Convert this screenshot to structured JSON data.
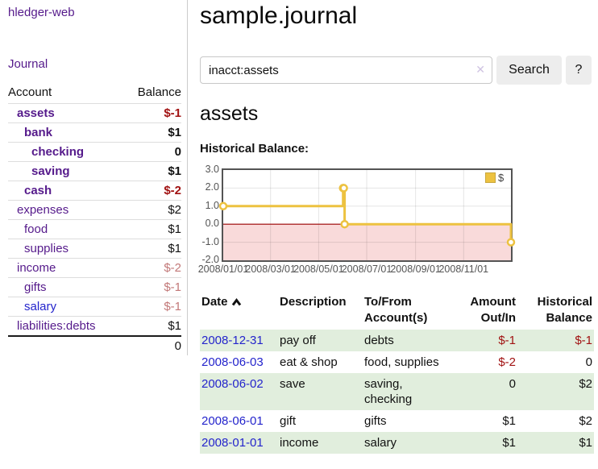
{
  "app": {
    "brand": "hledger-web",
    "nav_journal": "Journal"
  },
  "colors": {
    "accent_purple": "#551a8b",
    "link_blue": "#2424cc",
    "negative": "#a11212",
    "negative_soft": "#c27878",
    "row_green": "#e1eedd",
    "chart_line": "#edc240",
    "chart_negative_fill": "#f9dada",
    "zero_line": "#990000"
  },
  "sidebar": {
    "accounts_header": {
      "account": "Account",
      "balance": "Balance"
    },
    "rows": [
      {
        "name": "assets",
        "balance": "$-1",
        "depth": 1,
        "bold": true,
        "neg": "strong"
      },
      {
        "name": "bank",
        "balance": "$1",
        "depth": 2,
        "bold": true,
        "neg": ""
      },
      {
        "name": "checking",
        "balance": "0",
        "depth": 3,
        "bold": true,
        "neg": ""
      },
      {
        "name": "saving",
        "balance": "$1",
        "depth": 3,
        "bold": true,
        "neg": ""
      },
      {
        "name": "cash",
        "balance": "$-2",
        "depth": 2,
        "bold": true,
        "neg": "strong"
      },
      {
        "name": "expenses",
        "balance": "$2",
        "depth": 1,
        "bold": false,
        "neg": ""
      },
      {
        "name": "food",
        "balance": "$1",
        "depth": 2,
        "bold": false,
        "neg": ""
      },
      {
        "name": "supplies",
        "balance": "$1",
        "depth": 2,
        "bold": false,
        "neg": ""
      },
      {
        "name": "income",
        "balance": "$-2",
        "depth": 1,
        "bold": false,
        "neg": "soft"
      },
      {
        "name": "gifts",
        "balance": "$-1",
        "depth": 2,
        "bold": false,
        "neg": "soft"
      },
      {
        "name": "salary",
        "balance": "$-1",
        "depth": 2,
        "bold": false,
        "neg": "soft",
        "link": "blue"
      },
      {
        "name": "liabilities:debts",
        "balance": "$1",
        "depth": 1,
        "bold": false,
        "neg": ""
      }
    ],
    "total": "0"
  },
  "header": {
    "title": "sample.journal"
  },
  "search": {
    "value": "inacct:assets",
    "clear_icon": "✕",
    "button": "Search",
    "help_button": "?"
  },
  "account_page": {
    "heading": "assets",
    "chart_label": "Historical Balance:"
  },
  "chart_data": {
    "type": "line",
    "step": true,
    "title": "Historical Balance",
    "legend": "$",
    "legend_position": "top-right",
    "xlim": [
      "2008-01-01",
      "2008-12-31"
    ],
    "ylim": [
      -2,
      3
    ],
    "grid": true,
    "x_ticks": [
      "2008/01/01",
      "2008/03/01",
      "2008/05/01",
      "2008/07/01",
      "2008/09/01",
      "2008/11/01"
    ],
    "y_ticks": [
      "3.0",
      "2.0",
      "1.0",
      "0.0",
      "-1.0",
      "-2.0"
    ],
    "series": [
      {
        "name": "$",
        "points": [
          {
            "date": "2008-01-01",
            "value": 1
          },
          {
            "date": "2008-06-01",
            "value": 2
          },
          {
            "date": "2008-06-02",
            "value": 2
          },
          {
            "date": "2008-06-03",
            "value": 0
          },
          {
            "date": "2008-12-31",
            "value": -1
          }
        ]
      }
    ]
  },
  "register": {
    "columns": [
      {
        "lines": [
          "Date"
        ],
        "align": "left",
        "sort": "asc"
      },
      {
        "lines": [
          "Description"
        ],
        "align": "left"
      },
      {
        "lines": [
          "To/From",
          "Account(s)"
        ],
        "align": "left"
      },
      {
        "lines": [
          "Amount",
          "Out/In"
        ],
        "align": "right"
      },
      {
        "lines": [
          "Historical",
          "Balance"
        ],
        "align": "right"
      }
    ],
    "rows": [
      {
        "date": "2008-12-31",
        "description": "pay off",
        "accounts": "debts",
        "amount": "$-1",
        "balance": "$-1"
      },
      {
        "date": "2008-06-03",
        "description": "eat & shop",
        "accounts": "food, supplies",
        "amount": "$-2",
        "balance": "0"
      },
      {
        "date": "2008-06-02",
        "description": "save",
        "accounts": "saving, checking",
        "amount": "0",
        "balance": "$2"
      },
      {
        "date": "2008-06-01",
        "description": "gift",
        "accounts": "gifts",
        "amount": "$1",
        "balance": "$2"
      },
      {
        "date": "2008-01-01",
        "description": "income",
        "accounts": "salary",
        "amount": "$1",
        "balance": "$1"
      }
    ]
  }
}
